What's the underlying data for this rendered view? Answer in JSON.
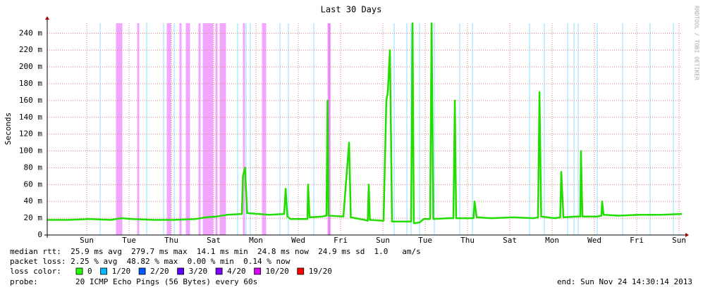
{
  "chart_data": {
    "type": "line",
    "title": "Last 30 Days",
    "y_label": "Seconds",
    "watermark": "RRDTOOL / TOBI OETIKER",
    "xlim": [
      0,
      30
    ],
    "xticks": [
      {
        "value": 1.87,
        "label": "Sun"
      },
      {
        "value": 3.87,
        "label": "Tue"
      },
      {
        "value": 5.87,
        "label": "Thu"
      },
      {
        "value": 7.87,
        "label": "Sat"
      },
      {
        "value": 9.87,
        "label": "Mon"
      },
      {
        "value": 11.87,
        "label": "Wed"
      },
      {
        "value": 13.87,
        "label": "Fri"
      },
      {
        "value": 15.87,
        "label": "Sun"
      },
      {
        "value": 17.87,
        "label": "Tue"
      },
      {
        "value": 19.87,
        "label": "Thu"
      },
      {
        "value": 21.87,
        "label": "Sat"
      },
      {
        "value": 23.87,
        "label": "Mon"
      },
      {
        "value": 25.87,
        "label": "Wed"
      },
      {
        "value": 27.87,
        "label": "Fri"
      },
      {
        "value": 29.87,
        "label": "Sun"
      }
    ],
    "ylim": [
      0,
      0.252
    ],
    "yticks": [
      0,
      {
        "value": 0.02,
        "label": "20 m"
      },
      {
        "value": 0.04,
        "label": "40 m"
      },
      {
        "value": 0.06,
        "label": "60 m"
      },
      {
        "value": 0.08,
        "label": "80 m"
      },
      {
        "value": 0.1,
        "label": "100 m"
      },
      {
        "value": 0.12,
        "label": "120 m"
      },
      {
        "value": 0.14,
        "label": "140 m"
      },
      {
        "value": 0.16,
        "label": "160 m"
      },
      {
        "value": 0.18,
        "label": "180 m"
      },
      {
        "value": 0.2,
        "label": "200 m"
      },
      {
        "value": 0.22,
        "label": "220 m"
      },
      {
        "value": 0.24,
        "label": "240 m"
      }
    ],
    "grid": true,
    "series": [
      {
        "name": "median rtt",
        "color": "#22dd00",
        "x": [
          0,
          1,
          2,
          3,
          3.5,
          4,
          5,
          6,
          7,
          7.5,
          8,
          8.5,
          9.2,
          9.25,
          9.35,
          9.45,
          10,
          10.5,
          11.2,
          11.27,
          11.35,
          11.5,
          12,
          12.3,
          12.33,
          12.4,
          13,
          13.2,
          13.25,
          13.3,
          14,
          14.27,
          14.35,
          15,
          15.15,
          15.2,
          15.25,
          15.9,
          16.03,
          16.1,
          16.2,
          16.3,
          16.6,
          17.2,
          17.27,
          17.33,
          17.6,
          17.8,
          18.1,
          18.17,
          18.25,
          19,
          19.2,
          19.27,
          19.33,
          20.15,
          20.2,
          20.3,
          21,
          22,
          23,
          23.2,
          23.27,
          23.35,
          24,
          24.25,
          24.3,
          24.4,
          25,
          25.2,
          25.23,
          25.3,
          26,
          26.2,
          26.23,
          26.3,
          27,
          28,
          29,
          30
        ],
        "values": [
          0.018,
          0.018,
          0.019,
          0.018,
          0.02,
          0.019,
          0.018,
          0.018,
          0.019,
          0.021,
          0.022,
          0.024,
          0.025,
          0.07,
          0.08,
          0.026,
          0.025,
          0.024,
          0.025,
          0.055,
          0.022,
          0.019,
          0.019,
          0.019,
          0.06,
          0.021,
          0.022,
          0.023,
          0.16,
          0.023,
          0.022,
          0.11,
          0.021,
          0.018,
          0.017,
          0.06,
          0.018,
          0.017,
          0.16,
          0.17,
          0.22,
          0.016,
          0.016,
          0.016,
          0.252,
          0.014,
          0.015,
          0.019,
          0.019,
          0.252,
          0.019,
          0.02,
          0.02,
          0.16,
          0.02,
          0.02,
          0.04,
          0.021,
          0.02,
          0.021,
          0.02,
          0.021,
          0.17,
          0.022,
          0.02,
          0.021,
          0.075,
          0.021,
          0.022,
          0.022,
          0.1,
          0.022,
          0.022,
          0.023,
          0.04,
          0.024,
          0.023,
          0.024,
          0.024,
          0.025
        ]
      }
    ],
    "loss_events": {
      "x": [
        3.3,
        3.4,
        3.5,
        4.3,
        5.7,
        5.8,
        6.3,
        6.6,
        6.7,
        7.2,
        7.4,
        7.5,
        7.6,
        7.7,
        7.8,
        8.0,
        8.2,
        8.3,
        8.4,
        9.3,
        10.2,
        10.3,
        13.3,
        13.35,
        2.5,
        4.7,
        5.5,
        6.0,
        9.0,
        9.4,
        9.6,
        11.0,
        11.4,
        12.6,
        16.4,
        17.0,
        17.2,
        17.6,
        18.3,
        19.5,
        20.1,
        22.8,
        23.5,
        24.6,
        24.9,
        25.1,
        26.0,
        27.2,
        28.5,
        29.6
      ],
      "level": [
        5,
        5,
        5,
        5,
        5,
        5,
        5,
        5,
        5,
        5,
        5,
        5,
        5,
        5,
        5,
        5,
        5,
        5,
        5,
        5,
        5,
        5,
        5,
        5,
        1,
        1,
        1,
        1,
        1,
        1,
        1,
        1,
        1,
        1,
        1,
        1,
        1,
        1,
        1,
        1,
        1,
        1,
        1,
        1,
        1,
        1,
        1,
        1,
        1,
        1
      ]
    },
    "median_rtt": "median rtt:  25.9 ms avg  279.7 ms max  14.1 ms min  24.8 ms now  24.9 ms sd  1.0   am/s",
    "packet_loss": "packet loss: 2.25 % avg  48.82 % max  0.00 % min  0.14 % now",
    "loss_color_label": "loss color:",
    "loss_levels": [
      {
        "label": "0",
        "color": "#26ff00"
      },
      {
        "label": "1/20",
        "color": "#00b8ff"
      },
      {
        "label": "2/20",
        "color": "#0059ff"
      },
      {
        "label": "3/20",
        "color": "#5e00ff"
      },
      {
        "label": "4/20",
        "color": "#7e00ff"
      },
      {
        "label": "10/20",
        "color": "#dd00ff"
      },
      {
        "label": "19/20",
        "color": "#ff0000"
      }
    ],
    "probe_label": "probe:",
    "probe": "20 ICMP Echo Pings (56 Bytes) every 60s",
    "end": "end: Sun Nov 24 14:30:14 2013"
  }
}
